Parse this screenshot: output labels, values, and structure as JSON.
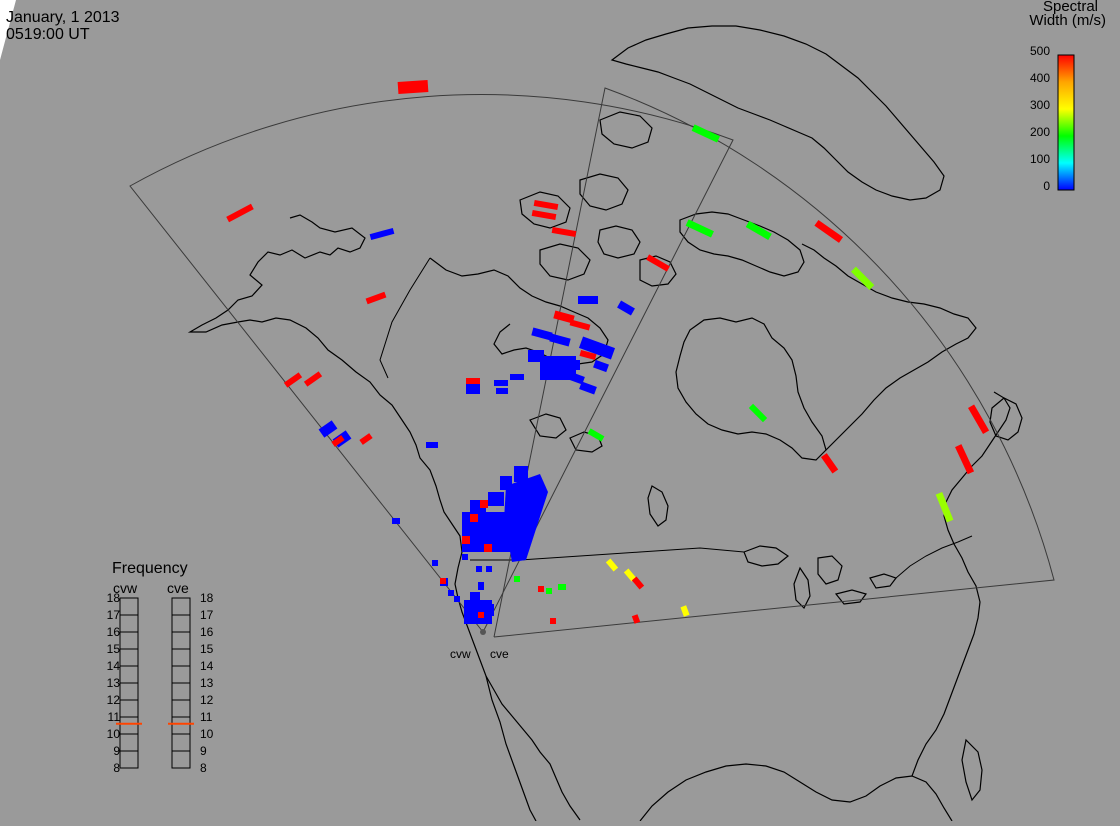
{
  "header": {
    "date": "January, 1 2013",
    "time": "0519:00 UT"
  },
  "colorbar": {
    "title_line1": "Spectral",
    "title_line2": "Width (m/s)",
    "ticks": [
      "500",
      "400",
      "300",
      "200",
      "100",
      "0"
    ],
    "colors": [
      "#ff0000",
      "#ffa500",
      "#ffff00",
      "#00ff00",
      "#00ffff",
      "#0000ff"
    ]
  },
  "frequency": {
    "title": "Frequency",
    "radars": [
      "cvw",
      "cve"
    ],
    "levels": [
      "18",
      "17",
      "16",
      "15",
      "14",
      "13",
      "12",
      "11",
      "10",
      "9",
      "8"
    ],
    "current": [
      10.6,
      10.6
    ]
  },
  "radar_sites": {
    "cvw_label": "cvw",
    "cve_label": "cve"
  },
  "colors": {
    "background": "#9a9a9a",
    "map_line": "#000000",
    "fov_line": "#3a3a3a",
    "marker": "#555555"
  }
}
